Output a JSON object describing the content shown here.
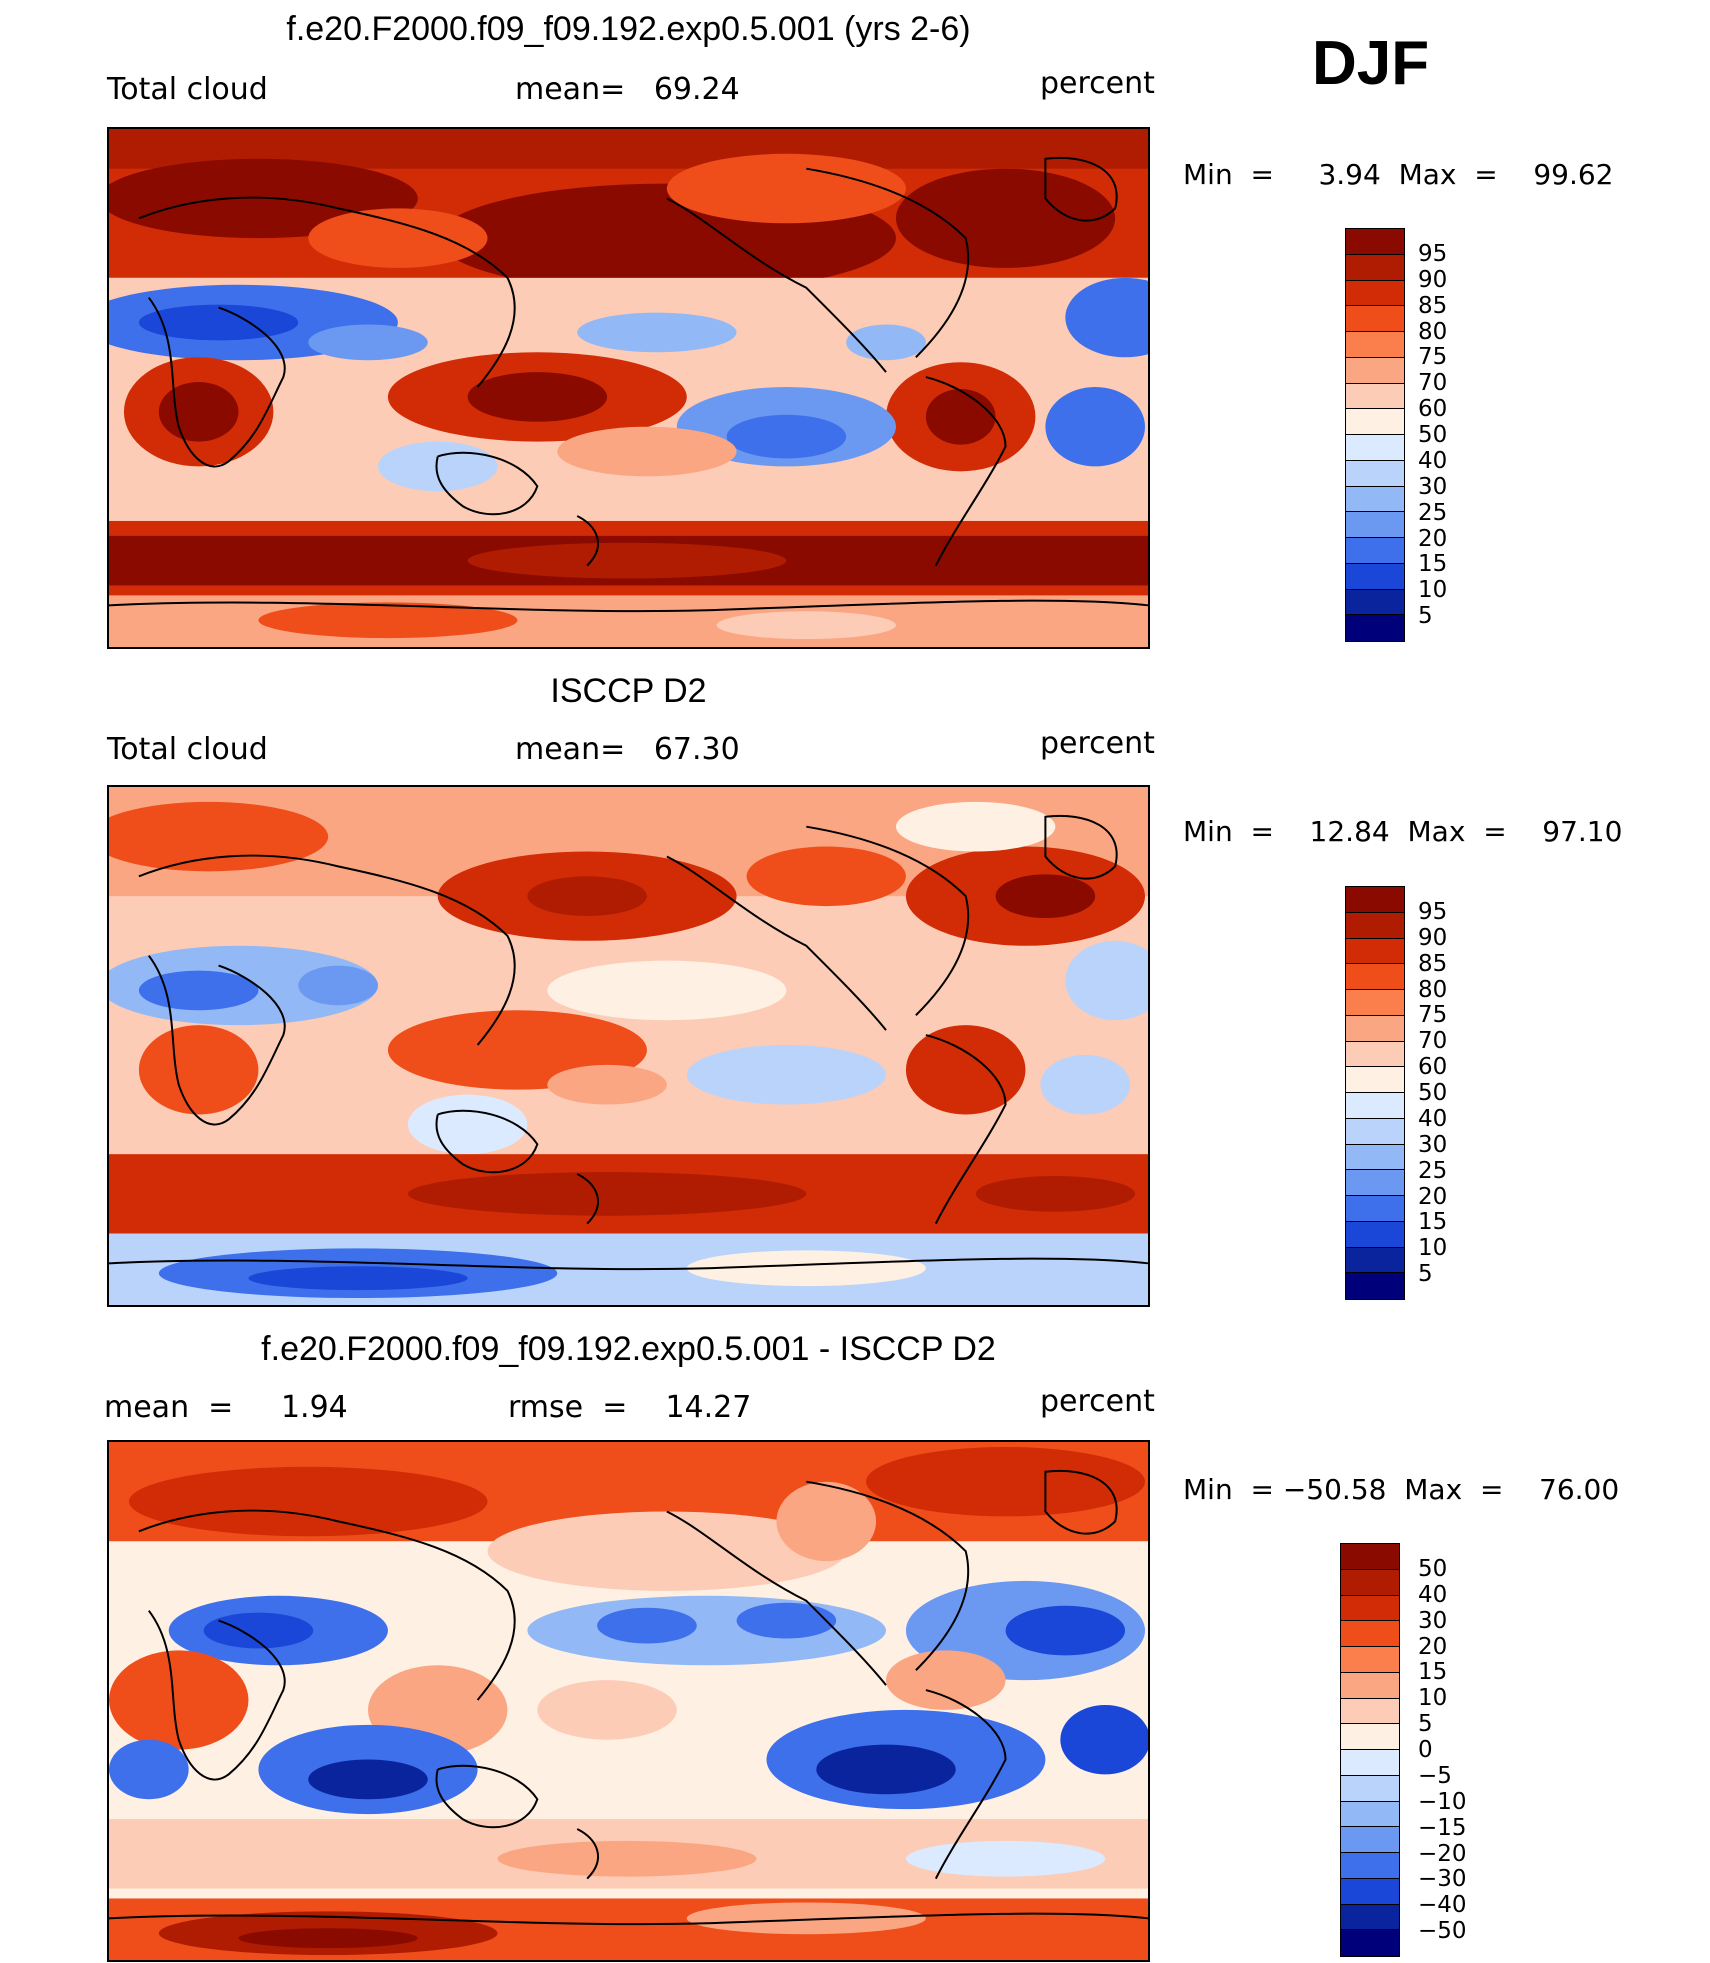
{
  "season": "DJF",
  "panels": [
    {
      "id": "model",
      "title": "f.e20.F2000.f09_f09.192.exp0.5.001 (yrs 2-6)",
      "left_label": "Total cloud",
      "center_label": "mean=   69.24",
      "right_label": "percent",
      "minmax": "Min  =     3.94  Max  =    99.62",
      "levels": [
        "95",
        "90",
        "85",
        "80",
        "75",
        "70",
        "60",
        "50",
        "40",
        "30",
        "25",
        "20",
        "15",
        "10",
        "5"
      ],
      "colors": [
        "#8b0a00",
        "#b01c02",
        "#d22c06",
        "#ef4e1b",
        "#fb7f4d",
        "#fba683",
        "#fcccb6",
        "#fff0e4",
        "#dbeaff",
        "#b9d3fb",
        "#93b8f6",
        "#6b99f2",
        "#3e70ec",
        "#1b47d8",
        "#0a249e",
        "#00007a"
      ]
    },
    {
      "id": "obs",
      "title": "ISCCP D2",
      "left_label": "Total cloud",
      "center_label": "mean=   67.30",
      "right_label": "percent",
      "minmax": "Min  =    12.84  Max  =    97.10",
      "levels": [
        "95",
        "90",
        "85",
        "80",
        "75",
        "70",
        "60",
        "50",
        "40",
        "30",
        "25",
        "20",
        "15",
        "10",
        "5"
      ],
      "colors": [
        "#8b0a00",
        "#b01c02",
        "#d22c06",
        "#ef4e1b",
        "#fb7f4d",
        "#fba683",
        "#fcccb6",
        "#fff0e4",
        "#dbeaff",
        "#b9d3fb",
        "#93b8f6",
        "#6b99f2",
        "#3e70ec",
        "#1b47d8",
        "#0a249e",
        "#00007a"
      ]
    },
    {
      "id": "diff",
      "title": "f.e20.F2000.f09_f09.192.exp0.5.001 - ISCCP D2",
      "left_label": "mean  =     1.94",
      "center_label": "rmse  =    14.27",
      "right_label": "percent",
      "minmax": "Min  = −50.58  Max  =    76.00",
      "levels": [
        "50",
        "40",
        "30",
        "20",
        "15",
        "10",
        "5",
        "0",
        "−5",
        "−10",
        "−15",
        "−20",
        "−30",
        "−40",
        "−50"
      ],
      "colors": [
        "#8b0a00",
        "#b01c02",
        "#d22c06",
        "#ef4e1b",
        "#fb7f4d",
        "#fba683",
        "#fcccb6",
        "#fff0e4",
        "#dbeaff",
        "#b9d3fb",
        "#93b8f6",
        "#6b99f2",
        "#3e70ec",
        "#1b47d8",
        "#0a249e",
        "#00007a"
      ]
    }
  ]
}
